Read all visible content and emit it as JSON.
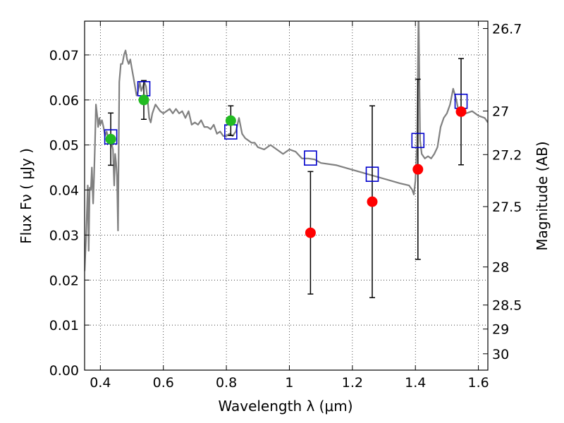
{
  "chart_data": {
    "type": "scatter",
    "xlabel": "Wavelength  λ (μm)",
    "ylabel": "Flux  Fν  ( μJy )",
    "y2label": "Magnitude (AB)",
    "xlim": [
      0.35,
      1.63
    ],
    "ylim": [
      0.0,
      0.0775
    ],
    "grid": true,
    "x_ticks": [
      {
        "value": 0.4,
        "label": "0.4"
      },
      {
        "value": 0.6,
        "label": "0.6"
      },
      {
        "value": 0.8,
        "label": "0.8"
      },
      {
        "value": 1.0,
        "label": "1"
      },
      {
        "value": 1.2,
        "label": "1.2"
      },
      {
        "value": 1.4,
        "label": "1.4"
      },
      {
        "value": 1.6,
        "label": "1.6"
      }
    ],
    "y_ticks": [
      {
        "value": 0.0,
        "label": "0.00"
      },
      {
        "value": 0.01,
        "label": "0.01"
      },
      {
        "value": 0.02,
        "label": "0.02"
      },
      {
        "value": 0.03,
        "label": "0.03"
      },
      {
        "value": 0.04,
        "label": "0.04"
      },
      {
        "value": 0.05,
        "label": "0.05"
      },
      {
        "value": 0.06,
        "label": "0.06"
      },
      {
        "value": 0.07,
        "label": "0.07"
      }
    ],
    "y2_ticks": [
      {
        "value": 26.7,
        "label": "26.7"
      },
      {
        "value": 27.0,
        "label": "27"
      },
      {
        "value": 27.2,
        "label": "27.2"
      },
      {
        "value": 27.5,
        "label": "27.5"
      },
      {
        "value": 28.0,
        "label": "28"
      },
      {
        "value": 28.5,
        "label": "28.5"
      },
      {
        "value": 29.0,
        "label": "29"
      },
      {
        "value": 30.0,
        "label": "30"
      }
    ],
    "series": [
      {
        "kind": "spectrum",
        "color": "#808080",
        "x": [
          0.35,
          0.355,
          0.36,
          0.363,
          0.366,
          0.37,
          0.373,
          0.377,
          0.38,
          0.383,
          0.386,
          0.39,
          0.393,
          0.397,
          0.4,
          0.405,
          0.41,
          0.415,
          0.42,
          0.425,
          0.43,
          0.435,
          0.44,
          0.444,
          0.447,
          0.45,
          0.453,
          0.456,
          0.46,
          0.465,
          0.47,
          0.475,
          0.48,
          0.485,
          0.49,
          0.495,
          0.5,
          0.505,
          0.51,
          0.515,
          0.52,
          0.525,
          0.53,
          0.535,
          0.54,
          0.545,
          0.55,
          0.555,
          0.56,
          0.565,
          0.57,
          0.575,
          0.58,
          0.59,
          0.6,
          0.61,
          0.62,
          0.63,
          0.64,
          0.65,
          0.66,
          0.67,
          0.68,
          0.69,
          0.7,
          0.71,
          0.72,
          0.73,
          0.74,
          0.75,
          0.76,
          0.77,
          0.78,
          0.79,
          0.8,
          0.81,
          0.82,
          0.83,
          0.84,
          0.85,
          0.86,
          0.87,
          0.88,
          0.89,
          0.9,
          0.92,
          0.94,
          0.96,
          0.98,
          1.0,
          1.02,
          1.04,
          1.06,
          1.08,
          1.1,
          1.15,
          1.2,
          1.25,
          1.3,
          1.35,
          1.38,
          1.39,
          1.395,
          1.4,
          1.405,
          1.41,
          1.415,
          1.42,
          1.43,
          1.44,
          1.45,
          1.46,
          1.47,
          1.48,
          1.49,
          1.5,
          1.51,
          1.52,
          1.53,
          1.54,
          1.56,
          1.58,
          1.6,
          1.62,
          1.63
        ],
        "y": [
          0.022,
          0.03,
          0.041,
          0.0265,
          0.0405,
          0.04,
          0.045,
          0.037,
          0.043,
          0.05,
          0.059,
          0.0565,
          0.054,
          0.056,
          0.0545,
          0.0555,
          0.054,
          0.052,
          0.053,
          0.0515,
          0.051,
          0.0505,
          0.049,
          0.041,
          0.048,
          0.046,
          0.043,
          0.031,
          0.064,
          0.068,
          0.068,
          0.07,
          0.071,
          0.069,
          0.068,
          0.069,
          0.067,
          0.065,
          0.063,
          0.061,
          0.062,
          0.064,
          0.062,
          0.063,
          0.064,
          0.063,
          0.06,
          0.056,
          0.055,
          0.057,
          0.058,
          0.059,
          0.0585,
          0.0575,
          0.057,
          0.0575,
          0.058,
          0.057,
          0.058,
          0.057,
          0.0575,
          0.056,
          0.0575,
          0.0545,
          0.055,
          0.0545,
          0.0555,
          0.054,
          0.054,
          0.0535,
          0.0545,
          0.0525,
          0.053,
          0.052,
          0.052,
          0.0525,
          0.052,
          0.053,
          0.056,
          0.0525,
          0.0515,
          0.051,
          0.0505,
          0.0505,
          0.0495,
          0.049,
          0.05,
          0.049,
          0.048,
          0.049,
          0.0485,
          0.047,
          0.047,
          0.0468,
          0.046,
          0.0455,
          0.0445,
          0.0435,
          0.0425,
          0.0415,
          0.041,
          0.04,
          0.039,
          0.042,
          0.05,
          0.08,
          0.051,
          0.048,
          0.047,
          0.0475,
          0.047,
          0.048,
          0.0495,
          0.054,
          0.056,
          0.057,
          0.059,
          0.0625,
          0.06,
          0.0565,
          0.057,
          0.0575,
          0.0565,
          0.056,
          0.055
        ]
      },
      {
        "kind": "model-squares",
        "color": "#0000cc",
        "x": [
          0.433,
          0.538,
          0.814,
          1.067,
          1.263,
          1.408,
          1.545
        ],
        "y": [
          0.0518,
          0.0625,
          0.0529,
          0.0471,
          0.0435,
          0.051,
          0.0597
        ]
      },
      {
        "kind": "detections",
        "color": "#22bb22",
        "x": [
          0.433,
          0.538,
          0.814
        ],
        "y": [
          0.0513,
          0.06,
          0.0554
        ],
        "err": [
          0.0058,
          0.0043,
          0.0033
        ]
      },
      {
        "kind": "upper-limits",
        "color": "#ff0000",
        "x": [
          1.067,
          1.263,
          1.408,
          1.545
        ],
        "y": [
          0.0305,
          0.0374,
          0.0446,
          0.0574
        ],
        "err": [
          0.0136,
          0.0213,
          0.02,
          0.0118
        ]
      }
    ]
  }
}
